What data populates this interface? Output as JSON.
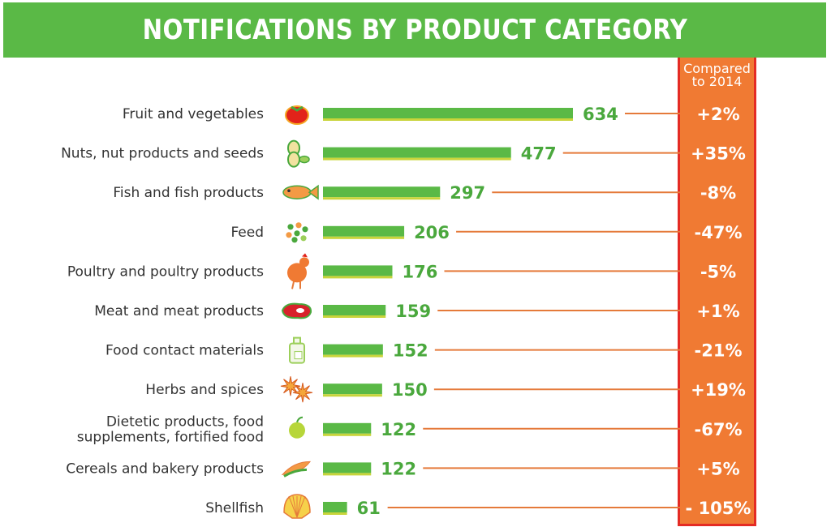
{
  "title": "NOTIFICATIONS BY PRODUCT CATEGORY",
  "compare_header": [
    "Compared",
    "to 2014"
  ],
  "colors": {
    "title_bg": "#5ab946",
    "bar": "#5ab946",
    "bar_underline": "#c8d43a",
    "value_text": "#4aa83d",
    "leader_line": "#e57a3a",
    "compare_bg": "#f07a33",
    "compare_border": "#e42b24"
  },
  "chart_data": {
    "type": "bar",
    "orientation": "horizontal",
    "title": "NOTIFICATIONS BY PRODUCT CATEGORY",
    "categories": [
      [
        "Fruit and vegetables"
      ],
      [
        "Nuts, nut products and seeds"
      ],
      [
        "Fish and fish products"
      ],
      [
        "Feed"
      ],
      [
        "Poultry and poultry products"
      ],
      [
        "Meat and meat products"
      ],
      [
        "Food contact materials"
      ],
      [
        "Herbs and spices"
      ],
      [
        "Dietetic products, food",
        "supplements, fortified food"
      ],
      [
        "Cereals and bakery products"
      ],
      [
        "Shellfish"
      ]
    ],
    "values": [
      634,
      477,
      297,
      206,
      176,
      159,
      152,
      150,
      122,
      122,
      61
    ],
    "value_labels": [
      "634",
      "477",
      "297",
      "206",
      "176",
      "159",
      "152",
      "150",
      "122",
      "122",
      "61"
    ],
    "changes_vs_2014": [
      "+2%",
      "+35%",
      "-8%",
      "-47%",
      "-5%",
      "+1%",
      "-21%",
      "+19%",
      "-67%",
      "+5%",
      "- 105%"
    ],
    "icons": [
      "tomato-icon",
      "peanut-icon",
      "fish-icon",
      "feed-pellets-icon",
      "chicken-icon",
      "steak-icon",
      "bottle-icon",
      "star-anise-icon",
      "apple-icon",
      "corn-icon",
      "shell-icon"
    ],
    "xlim": [
      0,
      634
    ],
    "grid": false,
    "legend": "none"
  }
}
